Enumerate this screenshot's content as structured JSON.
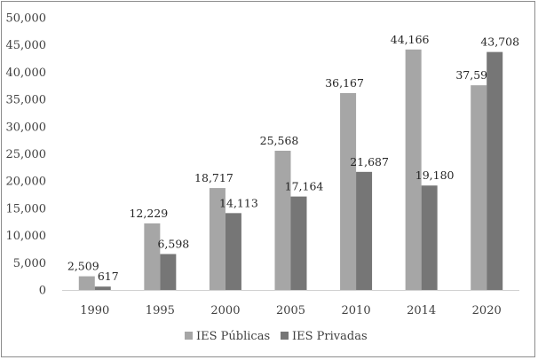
{
  "chart_data": {
    "type": "bar",
    "title": "",
    "xlabel": "",
    "ylabel": "",
    "ylim": [
      0,
      50000
    ],
    "yticks": [
      "0",
      "5,000",
      "10,000",
      "15,000",
      "20,000",
      "25,000",
      "30,000",
      "35,000",
      "40,000",
      "45,000",
      "50,000"
    ],
    "ytick_values": [
      0,
      5000,
      10000,
      15000,
      20000,
      25000,
      30000,
      35000,
      40000,
      45000,
      50000
    ],
    "categories": [
      "1990",
      "1995",
      "2000",
      "2005",
      "2010",
      "2014",
      "2020"
    ],
    "series": [
      {
        "name": "IES Públicas",
        "color": "#a6a6a6",
        "values": [
          2509,
          12229,
          18717,
          25568,
          36167,
          44166,
          37595
        ],
        "labels": [
          "2,509",
          "12,229",
          "18,717",
          "25,568",
          "36,167",
          "44,166",
          "37,595"
        ]
      },
      {
        "name": "IES Privadas",
        "color": "#767676",
        "values": [
          617,
          6598,
          14113,
          17164,
          21687,
          19180,
          43708
        ],
        "labels": [
          "617",
          "6,598",
          "14,113",
          "17,164",
          "21,687",
          "19,180",
          "43,708"
        ]
      }
    ],
    "grid": false,
    "legend": "bottom"
  }
}
